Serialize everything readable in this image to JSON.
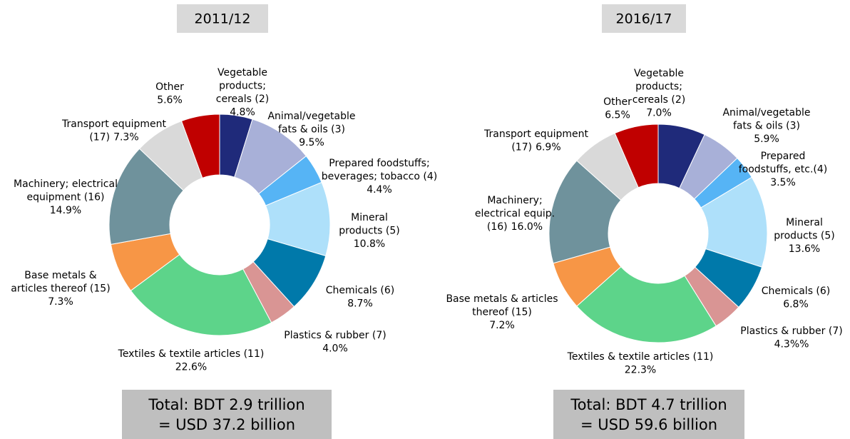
{
  "chart_data": [
    {
      "type": "donut",
      "title": "2011/12",
      "categories": [
        "Vegetable\nproducts;\ncereals (2)",
        "Animal/vegetable\nfats & oils (3)",
        "Prepared foodstuffs;\nbeverages; tobacco (4)",
        "Mineral\nproducts (5)",
        "Chemicals (6)",
        "Plastics & rubber (7)",
        "Textiles & textile articles (11)",
        "Base metals &\narticles thereof (15)",
        "Machinery; electrical\nequipment (16)",
        "Transport equipment\n(17)",
        "Other"
      ],
      "values": [
        4.8,
        9.5,
        4.4,
        10.8,
        8.7,
        4.0,
        22.6,
        7.3,
        14.9,
        7.3,
        5.6
      ],
      "value_labels": [
        "4.8%",
        "9.5%",
        "4.4%",
        "10.8%",
        "8.7%",
        "4.0%",
        "22.6%",
        "7.3%",
        "14.9%",
        "7.3%",
        "5.6%"
      ],
      "colors": [
        "#1f2a7a",
        "#a8b0d8",
        "#56b4f5",
        "#aee0fa",
        "#0079aa",
        "#d99594",
        "#5dd48a",
        "#f79646",
        "#6f929c",
        "#d9d9d9",
        "#c00000"
      ],
      "total": [
        "Total:  BDT 2.9 trillion",
        "= USD 37.2 billion"
      ]
    },
    {
      "type": "donut",
      "title": "2016/17",
      "categories": [
        "Vegetable\nproducts;\ncereals (2)",
        "Animal/vegetable\nfats & oils (3)",
        "Prepared\nfoodstuffs, etc.(4)",
        "Mineral\nproducts (5)",
        "Chemicals (6)",
        "Plastics & rubber (7)",
        "Textiles & textile articles (11)",
        "Base metals & articles\nthereof (15)",
        "Machinery;\nelectrical equip.\n(16)",
        "Transport equipment\n(17)",
        "Other"
      ],
      "values": [
        7.0,
        5.9,
        3.5,
        13.6,
        6.8,
        4.3,
        22.3,
        7.2,
        16.0,
        6.9,
        6.5
      ],
      "value_labels": [
        "7.0%",
        "5.9%",
        "3.5%",
        "13.6%",
        "6.8%",
        "4.3%%",
        "22.3%",
        "7.2%",
        "16.0%",
        "6.9%",
        "6.5%"
      ],
      "colors": [
        "#1f2a7a",
        "#a8b0d8",
        "#56b4f5",
        "#aee0fa",
        "#0079aa",
        "#d99594",
        "#5dd48a",
        "#f79646",
        "#6f929c",
        "#d9d9d9",
        "#c00000"
      ],
      "total": [
        "Total:  BDT 4.7 trillion",
        "= USD 59.6 billion"
      ]
    }
  ]
}
